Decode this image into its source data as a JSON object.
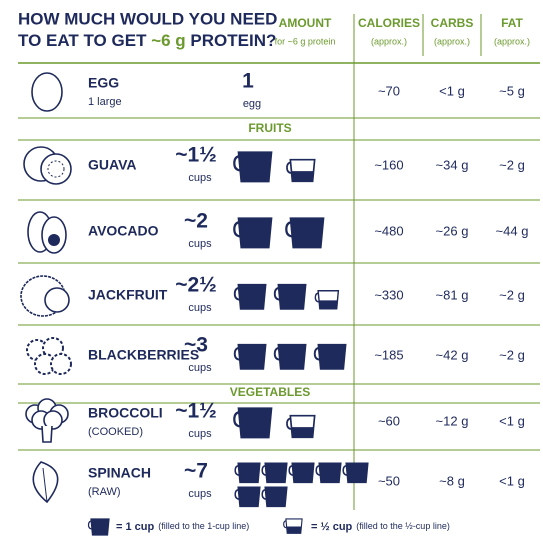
{
  "header": {
    "title_start": "HOW MUCH WOULD YOU NEED",
    "title_line2": "TO EAT TO GET ",
    "title_highlight": "~6 g",
    "title_end": " PROTEIN?"
  },
  "columns": [
    {
      "label": "AMOUNT",
      "note": "for ~6 g protein"
    },
    {
      "label": "CALORIES",
      "note": "(approx.)"
    },
    {
      "label": "CARBS",
      "note": "(approx.)"
    },
    {
      "label": "FAT",
      "note": "(approx.)"
    }
  ],
  "items": [
    {
      "name": "EGG",
      "detail": "1 large",
      "amount": "1",
      "unit": "egg",
      "calories": "~70",
      "carbs": "<1 g",
      "fat": "~5 g"
    },
    {
      "section": "FRUITS"
    },
    {
      "name": "GUAVA",
      "amount": "~1½",
      "unit": "cups",
      "full_cups": 1,
      "half_cups": 1,
      "calories": "~160",
      "carbs": "~34 g",
      "fat": "~2 g"
    },
    {
      "name": "AVOCADO",
      "amount": "~2",
      "unit": "cups",
      "full_cups": 2,
      "half_cups": 0,
      "calories": "~480",
      "carbs": "~26 g",
      "fat": "~44 g"
    },
    {
      "name": "JACKFRUIT",
      "amount": "~2½",
      "unit": "cups",
      "full_cups": 2,
      "half_cups": 1,
      "calories": "~330",
      "carbs": "~81 g",
      "fat": "~2 g"
    },
    {
      "name": "BLACKBERRIES",
      "amount": "~3",
      "unit": "cups",
      "full_cups": 3,
      "half_cups": 0,
      "calories": "~185",
      "carbs": "~42 g",
      "fat": "~2 g"
    },
    {
      "section": "VEGETABLES"
    },
    {
      "name": "BROCCOLI",
      "detail": "(COOKED)",
      "amount": "~1½",
      "unit": "cups",
      "full_cups": 1,
      "half_cups": 1,
      "calories": "~60",
      "carbs": "~12 g",
      "fat": "<1 g"
    },
    {
      "name": "SPINACH",
      "detail": "(RAW)",
      "amount": "~7",
      "unit": "cups",
      "full_cups": 7,
      "half_cups": 0,
      "calories": "~50",
      "carbs": "~8 g",
      "fat": "<1 g"
    }
  ],
  "legend": [
    {
      "label": "= 1 cup",
      "note": "(filled to the 1-cup line)"
    },
    {
      "label": "= ½ cup",
      "note": "(filled to the ½-cup line)"
    }
  ]
}
